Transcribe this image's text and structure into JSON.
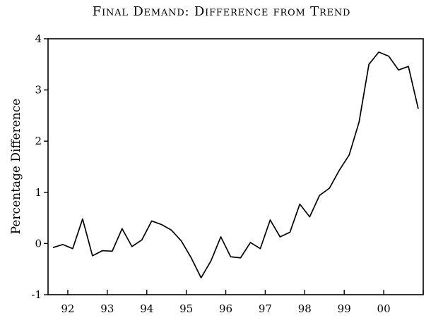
{
  "chart_data": {
    "type": "line",
    "title": "Final Demand: Difference from Trend",
    "xlabel": "",
    "ylabel": "Percentage Difference",
    "ylim": [
      -1,
      4
    ],
    "xlim": [
      1991.5,
      2001.0
    ],
    "y_ticks": [
      4,
      3,
      2,
      1,
      0,
      -1
    ],
    "x_tick_labels": [
      "92",
      "93",
      "94",
      "95",
      "96",
      "97",
      "98",
      "99",
      "00"
    ],
    "grid": false,
    "legend": "none",
    "line_color": "#000000",
    "series": [
      {
        "x": [
          1991.625,
          1991.875,
          1992.125,
          1992.375,
          1992.625,
          1992.875,
          1993.125,
          1993.375,
          1993.625,
          1993.875,
          1994.125,
          1994.375,
          1994.625,
          1994.875,
          1995.125,
          1995.375,
          1995.625,
          1995.875,
          1996.125,
          1996.375,
          1996.625,
          1996.875,
          1997.125,
          1997.375,
          1997.625,
          1997.875,
          1998.125,
          1998.375,
          1998.625,
          1998.875,
          1999.125,
          1999.375,
          1999.625,
          1999.875,
          2000.125,
          2000.375,
          2000.625,
          2000.875
        ],
        "values": [
          -0.08,
          -0.02,
          -0.1,
          0.48,
          -0.24,
          -0.14,
          -0.15,
          0.29,
          -0.06,
          0.07,
          0.44,
          0.37,
          0.26,
          0.05,
          -0.28,
          -0.67,
          -0.34,
          0.13,
          -0.26,
          -0.28,
          0.02,
          -0.1,
          0.46,
          0.13,
          0.22,
          0.77,
          0.52,
          0.94,
          1.08,
          1.43,
          1.73,
          2.37,
          3.5,
          3.74,
          3.66,
          3.39,
          3.46,
          2.63
        ]
      }
    ]
  }
}
